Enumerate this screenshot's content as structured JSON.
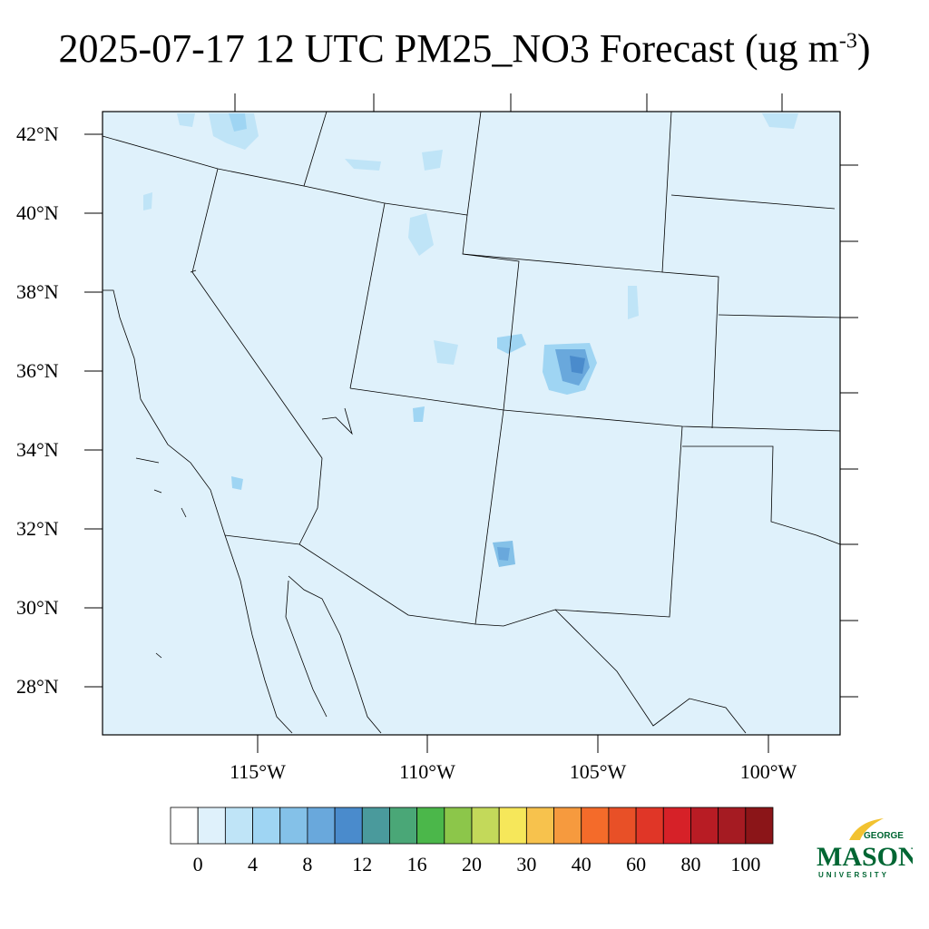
{
  "title": {
    "text": "2025-07-17 12 UTC PM25_NO3 Forecast (ug m",
    "superscript": "-3",
    "close": ")"
  },
  "map": {
    "lat_labels": [
      "42°N",
      "40°N",
      "38°N",
      "36°N",
      "34°N",
      "32°N",
      "30°N",
      "28°N"
    ],
    "lon_labels": [
      "115°W",
      "110°W",
      "105°W",
      "100°W"
    ],
    "background_color": "#dff1fb",
    "border_color": "#000000"
  },
  "colorbar": {
    "labels": [
      "0",
      "4",
      "8",
      "12",
      "16",
      "20",
      "30",
      "40",
      "60",
      "80",
      "100"
    ],
    "colors": [
      "#ffffff",
      "#dff1fb",
      "#bfe4f7",
      "#9fd5f3",
      "#84c1e8",
      "#69a8dc",
      "#4a8bcc",
      "#4a9a9c",
      "#4aa777",
      "#4bb74a",
      "#8cc64a",
      "#c3d95a",
      "#f6e75a",
      "#f7c24d",
      "#f69a3e",
      "#f46b2a",
      "#e85027",
      "#e03627",
      "#d62128",
      "#b81c24",
      "#a51b22",
      "#8b1518"
    ]
  },
  "logo": {
    "line1": "GEORGE",
    "line2": "MASON",
    "line3": "UNIVERSITY"
  }
}
